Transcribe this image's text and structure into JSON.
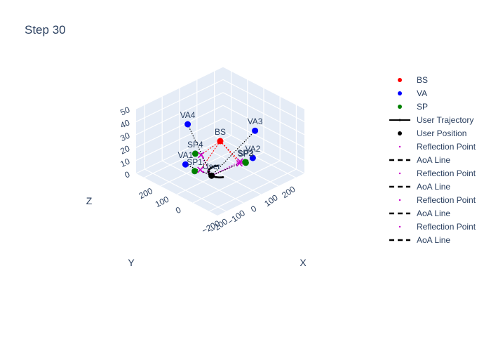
{
  "chart_data": {
    "type": "scatter3d",
    "title": "Step 30",
    "axes": {
      "x": {
        "label": "X",
        "range": [
          -250,
          250
        ],
        "ticks": [
          -200,
          0,
          100,
          200
        ],
        "tick_labels": [
          "−200",
          "0",
          "100",
          "200"
        ]
      },
      "y": {
        "label": "Y",
        "range": [
          -250,
          250
        ],
        "ticks": [
          -200,
          -100,
          0,
          100,
          200
        ],
        "tick_labels": [
          "−200",
          "−100",
          "0",
          "100",
          "200"
        ]
      },
      "z": {
        "label": "Z",
        "range": [
          0,
          50
        ],
        "ticks": [
          0,
          10,
          20,
          30,
          40,
          50
        ],
        "tick_labels": [
          "0",
          "10",
          "20",
          "30",
          "40",
          "50"
        ]
      }
    },
    "legend_position": "right",
    "series": [
      {
        "name": "BS",
        "kind": "marker",
        "color": "#ff0000",
        "points": [
          {
            "label": "BS",
            "x": 0,
            "y": 0,
            "z": 25
          }
        ]
      },
      {
        "name": "VA",
        "kind": "marker",
        "color": "#0000ff",
        "points": [
          {
            "label": "VA1",
            "x": 0,
            "y": -200,
            "z": 20
          },
          {
            "label": "VA2",
            "x": -200,
            "y": 0,
            "z": 25
          },
          {
            "label": "VA3",
            "x": 0,
            "y": 200,
            "z": 20
          },
          {
            "label": "VA4",
            "x": 200,
            "y": 0,
            "z": 25
          }
        ]
      },
      {
        "name": "SP",
        "kind": "marker",
        "color": "#008000",
        "points": [
          {
            "label": "SP1",
            "x": 50,
            "y": -100,
            "z": 5
          },
          {
            "label": "SP2",
            "x": -100,
            "y": 50,
            "z": 12
          },
          {
            "label": "SP3",
            "x": -50,
            "y": 100,
            "z": 5
          },
          {
            "label": "SP4",
            "x": 100,
            "y": -50,
            "z": 12
          }
        ]
      },
      {
        "name": "User Trajectory",
        "kind": "line",
        "color": "#000000"
      },
      {
        "name": "User Position",
        "kind": "marker",
        "color": "#000000",
        "points": [
          {
            "label": "User",
            "x": 0,
            "y": -50,
            "z": 1.5
          }
        ]
      },
      {
        "name": "Reflection Point",
        "kind": "xmarker",
        "color": "#cc00cc"
      },
      {
        "name": "AoA Line",
        "kind": "dashline",
        "color": "#000000"
      },
      {
        "name": "Reflection Point",
        "kind": "xmarker",
        "color": "#cc00cc"
      },
      {
        "name": "AoA Line",
        "kind": "dashline",
        "color": "#000000"
      },
      {
        "name": "Reflection Point",
        "kind": "xmarker",
        "color": "#cc00cc"
      },
      {
        "name": "AoA Line",
        "kind": "dashline",
        "color": "#000000"
      },
      {
        "name": "Reflection Point",
        "kind": "xmarker",
        "color": "#cc00cc"
      },
      {
        "name": "AoA Line",
        "kind": "dashline",
        "color": "#000000"
      }
    ],
    "trajectory": {
      "center": [
        0,
        0
      ],
      "radius": 50,
      "angle_range_deg": [
        210,
        390
      ],
      "z": 1.5
    },
    "reflection_points": [
      {
        "x": 33,
        "y": -83,
        "z": 6
      },
      {
        "x": -83,
        "y": 33,
        "z": 11
      },
      {
        "x": -33,
        "y": 83,
        "z": 6
      },
      {
        "x": 83,
        "y": -33,
        "z": 11
      }
    ]
  }
}
